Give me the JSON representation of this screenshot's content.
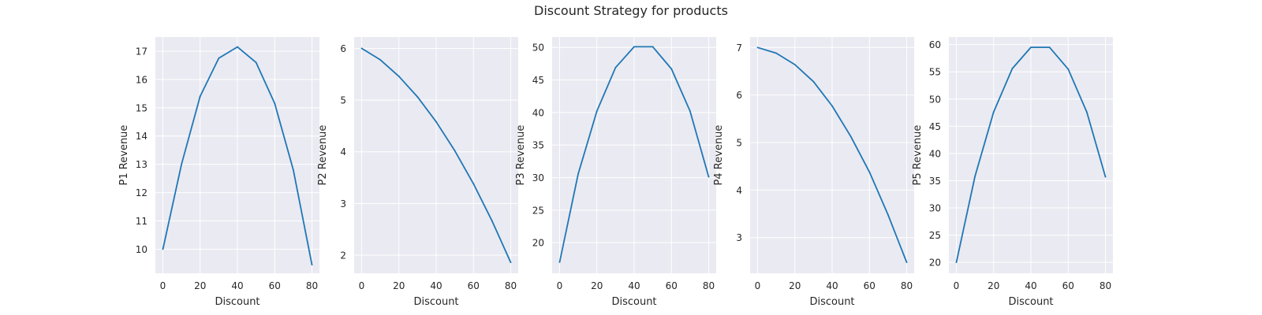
{
  "figure": {
    "title": "Discount Strategy for products"
  },
  "style": {
    "panel_bg": "#EAEAF2",
    "grid_color": "#FFFFFF",
    "line_color": "#1F77B4",
    "text_color": "#262626",
    "grid": true
  },
  "chart_data": [
    {
      "type": "line",
      "xlabel": "Discount",
      "ylabel": "P1 Revenue",
      "x": [
        0,
        10,
        20,
        30,
        40,
        50,
        60,
        70,
        80
      ],
      "y": [
        10.0,
        13.0,
        15.4,
        16.75,
        17.15,
        16.6,
        15.15,
        12.8,
        9.45
      ],
      "xlim": [
        -4,
        84
      ],
      "ylim": [
        9.15,
        17.5
      ],
      "xticks": [
        0,
        20,
        40,
        60,
        80
      ],
      "yticks": [
        10,
        11,
        12,
        13,
        14,
        15,
        16,
        17
      ]
    },
    {
      "type": "line",
      "xlabel": "Discount",
      "ylabel": "P2 Revenue",
      "x": [
        0,
        10,
        20,
        30,
        40,
        50,
        60,
        70,
        80
      ],
      "y": [
        6.0,
        5.78,
        5.46,
        5.06,
        4.58,
        4.02,
        3.38,
        2.66,
        1.86
      ],
      "xlim": [
        -4,
        84
      ],
      "ylim": [
        1.65,
        6.22
      ],
      "xticks": [
        0,
        20,
        40,
        60,
        80
      ],
      "yticks": [
        2,
        3,
        4,
        5,
        6
      ]
    },
    {
      "type": "line",
      "xlabel": "Discount",
      "ylabel": "P3 Revenue",
      "x": [
        0,
        10,
        20,
        30,
        40,
        50,
        60,
        70,
        80
      ],
      "y": [
        17.0,
        30.6,
        40.2,
        46.9,
        50.1,
        50.1,
        46.7,
        40.2,
        30.1
      ],
      "xlim": [
        -4,
        84
      ],
      "ylim": [
        15.3,
        51.6
      ],
      "xticks": [
        0,
        20,
        40,
        60,
        80
      ],
      "yticks": [
        20,
        25,
        30,
        35,
        40,
        45,
        50
      ]
    },
    {
      "type": "line",
      "xlabel": "Discount",
      "ylabel": "P4 Revenue",
      "x": [
        0,
        10,
        20,
        30,
        40,
        50,
        60,
        70,
        80
      ],
      "y": [
        7.0,
        6.88,
        6.64,
        6.28,
        5.77,
        5.13,
        4.38,
        3.48,
        2.48
      ],
      "xlim": [
        -4,
        84
      ],
      "ylim": [
        2.25,
        7.22
      ],
      "xticks": [
        0,
        20,
        40,
        60,
        80
      ],
      "yticks": [
        3,
        4,
        5,
        6,
        7
      ]
    },
    {
      "type": "line",
      "xlabel": "Discount",
      "ylabel": "P5 Revenue",
      "x": [
        0,
        10,
        20,
        30,
        40,
        50,
        60,
        70,
        80
      ],
      "y": [
        20.0,
        35.8,
        47.6,
        55.6,
        59.5,
        59.5,
        55.5,
        47.6,
        35.7
      ],
      "xlim": [
        -4,
        84
      ],
      "ylim": [
        18.0,
        61.4
      ],
      "xticks": [
        0,
        20,
        40,
        60,
        80
      ],
      "yticks": [
        20,
        25,
        30,
        35,
        40,
        45,
        50,
        55,
        60
      ]
    }
  ]
}
